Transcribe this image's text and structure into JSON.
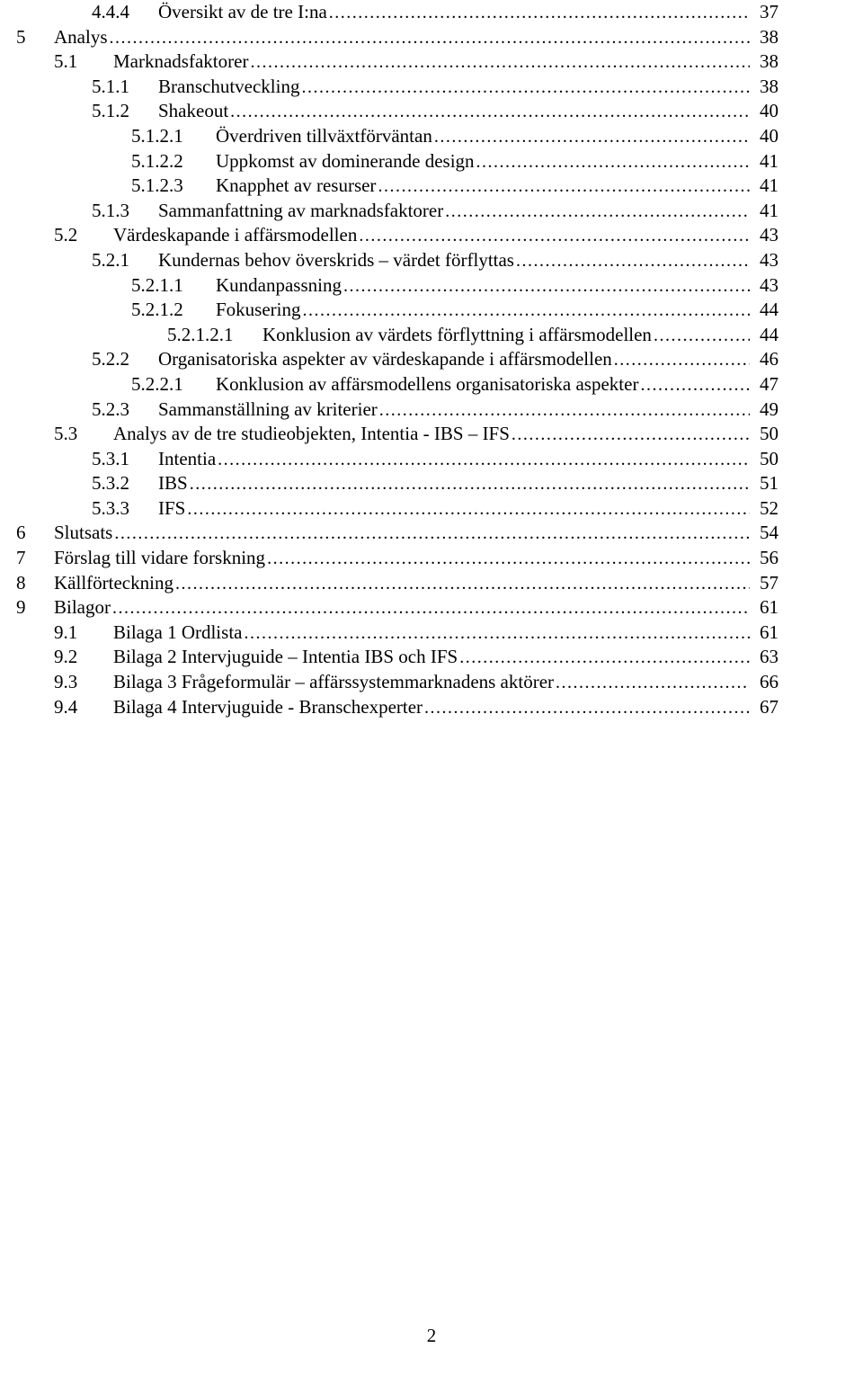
{
  "page_number": "2",
  "font": {
    "family": "Garamond/Georgia serif",
    "size_pt": 12,
    "color": "#000000"
  },
  "background_color": "#ffffff",
  "entries": [
    {
      "level": 3,
      "num": "4.4.4",
      "title": "Översikt av de tre I:na",
      "page": "37"
    },
    {
      "level": 1,
      "num": "5",
      "title": "Analys",
      "page": "38"
    },
    {
      "level": 2,
      "num": "5.1",
      "title": "Marknadsfaktorer",
      "page": "38"
    },
    {
      "level": 3,
      "num": "5.1.1",
      "title": "Branschutveckling",
      "page": "38"
    },
    {
      "level": 3,
      "num": "5.1.2",
      "title": "Shakeout",
      "page": "40"
    },
    {
      "level": 4,
      "num": "5.1.2.1",
      "title": "Överdriven tillväxtförväntan",
      "page": "40"
    },
    {
      "level": 4,
      "num": "5.1.2.2",
      "title": "Uppkomst av dominerande design",
      "page": "41"
    },
    {
      "level": 4,
      "num": "5.1.2.3",
      "title": "Knapphet av resurser",
      "page": "41"
    },
    {
      "level": 3,
      "num": "5.1.3",
      "title": "Sammanfattning av marknadsfaktorer",
      "page": "41"
    },
    {
      "level": 2,
      "num": "5.2",
      "title": "Värdeskapande i affärsmodellen",
      "page": "43"
    },
    {
      "level": 3,
      "num": "5.2.1",
      "title": "Kundernas behov överskrids – värdet förflyttas",
      "page": "43"
    },
    {
      "level": 4,
      "num": "5.2.1.1",
      "title": "Kundanpassning",
      "page": "43"
    },
    {
      "level": 4,
      "num": "5.2.1.2",
      "title": "Fokusering",
      "page": "44"
    },
    {
      "level": 5,
      "num": "5.2.1.2.1",
      "title": "Konklusion av värdets förflyttning i affärsmodellen",
      "page": "44"
    },
    {
      "level": 3,
      "num": "5.2.2",
      "title": "Organisatoriska aspekter av värdeskapande i affärsmodellen",
      "page": "46"
    },
    {
      "level": 4,
      "num": "5.2.2.1",
      "title": "Konklusion av affärsmodellens organisatoriska aspekter",
      "page": "47"
    },
    {
      "level": 3,
      "num": "5.2.3",
      "title": "Sammanställning av kriterier",
      "page": "49"
    },
    {
      "level": 2,
      "num": "5.3",
      "title": "Analys av de tre studieobjekten, Intentia - IBS – IFS",
      "page": "50"
    },
    {
      "level": 3,
      "num": "5.3.1",
      "title": "Intentia",
      "page": "50"
    },
    {
      "level": 3,
      "num": "5.3.2",
      "title": "IBS",
      "page": "51"
    },
    {
      "level": 3,
      "num": "5.3.3",
      "title": "IFS",
      "page": "52"
    },
    {
      "level": 1,
      "num": "6",
      "title": "Slutsats",
      "page": "54"
    },
    {
      "level": 1,
      "num": "7",
      "title": "Förslag till vidare forskning",
      "page": "56"
    },
    {
      "level": 1,
      "num": "8",
      "title": "Källförteckning",
      "page": "57"
    },
    {
      "level": 1,
      "num": "9",
      "title": "Bilagor",
      "page": "61"
    },
    {
      "level": 2,
      "num": "9.1",
      "title": "Bilaga 1 Ordlista",
      "page": "61"
    },
    {
      "level": 2,
      "num": "9.2",
      "title": "Bilaga 2 Intervjuguide – Intentia IBS och IFS",
      "page": "63"
    },
    {
      "level": 2,
      "num": "9.3",
      "title": "Bilaga 3 Frågeformulär – affärssystemmarknadens aktörer",
      "page": "66"
    },
    {
      "level": 2,
      "num": "9.4",
      "title": "Bilaga 4 Intervjuguide - Branschexperter",
      "page": "67"
    }
  ]
}
